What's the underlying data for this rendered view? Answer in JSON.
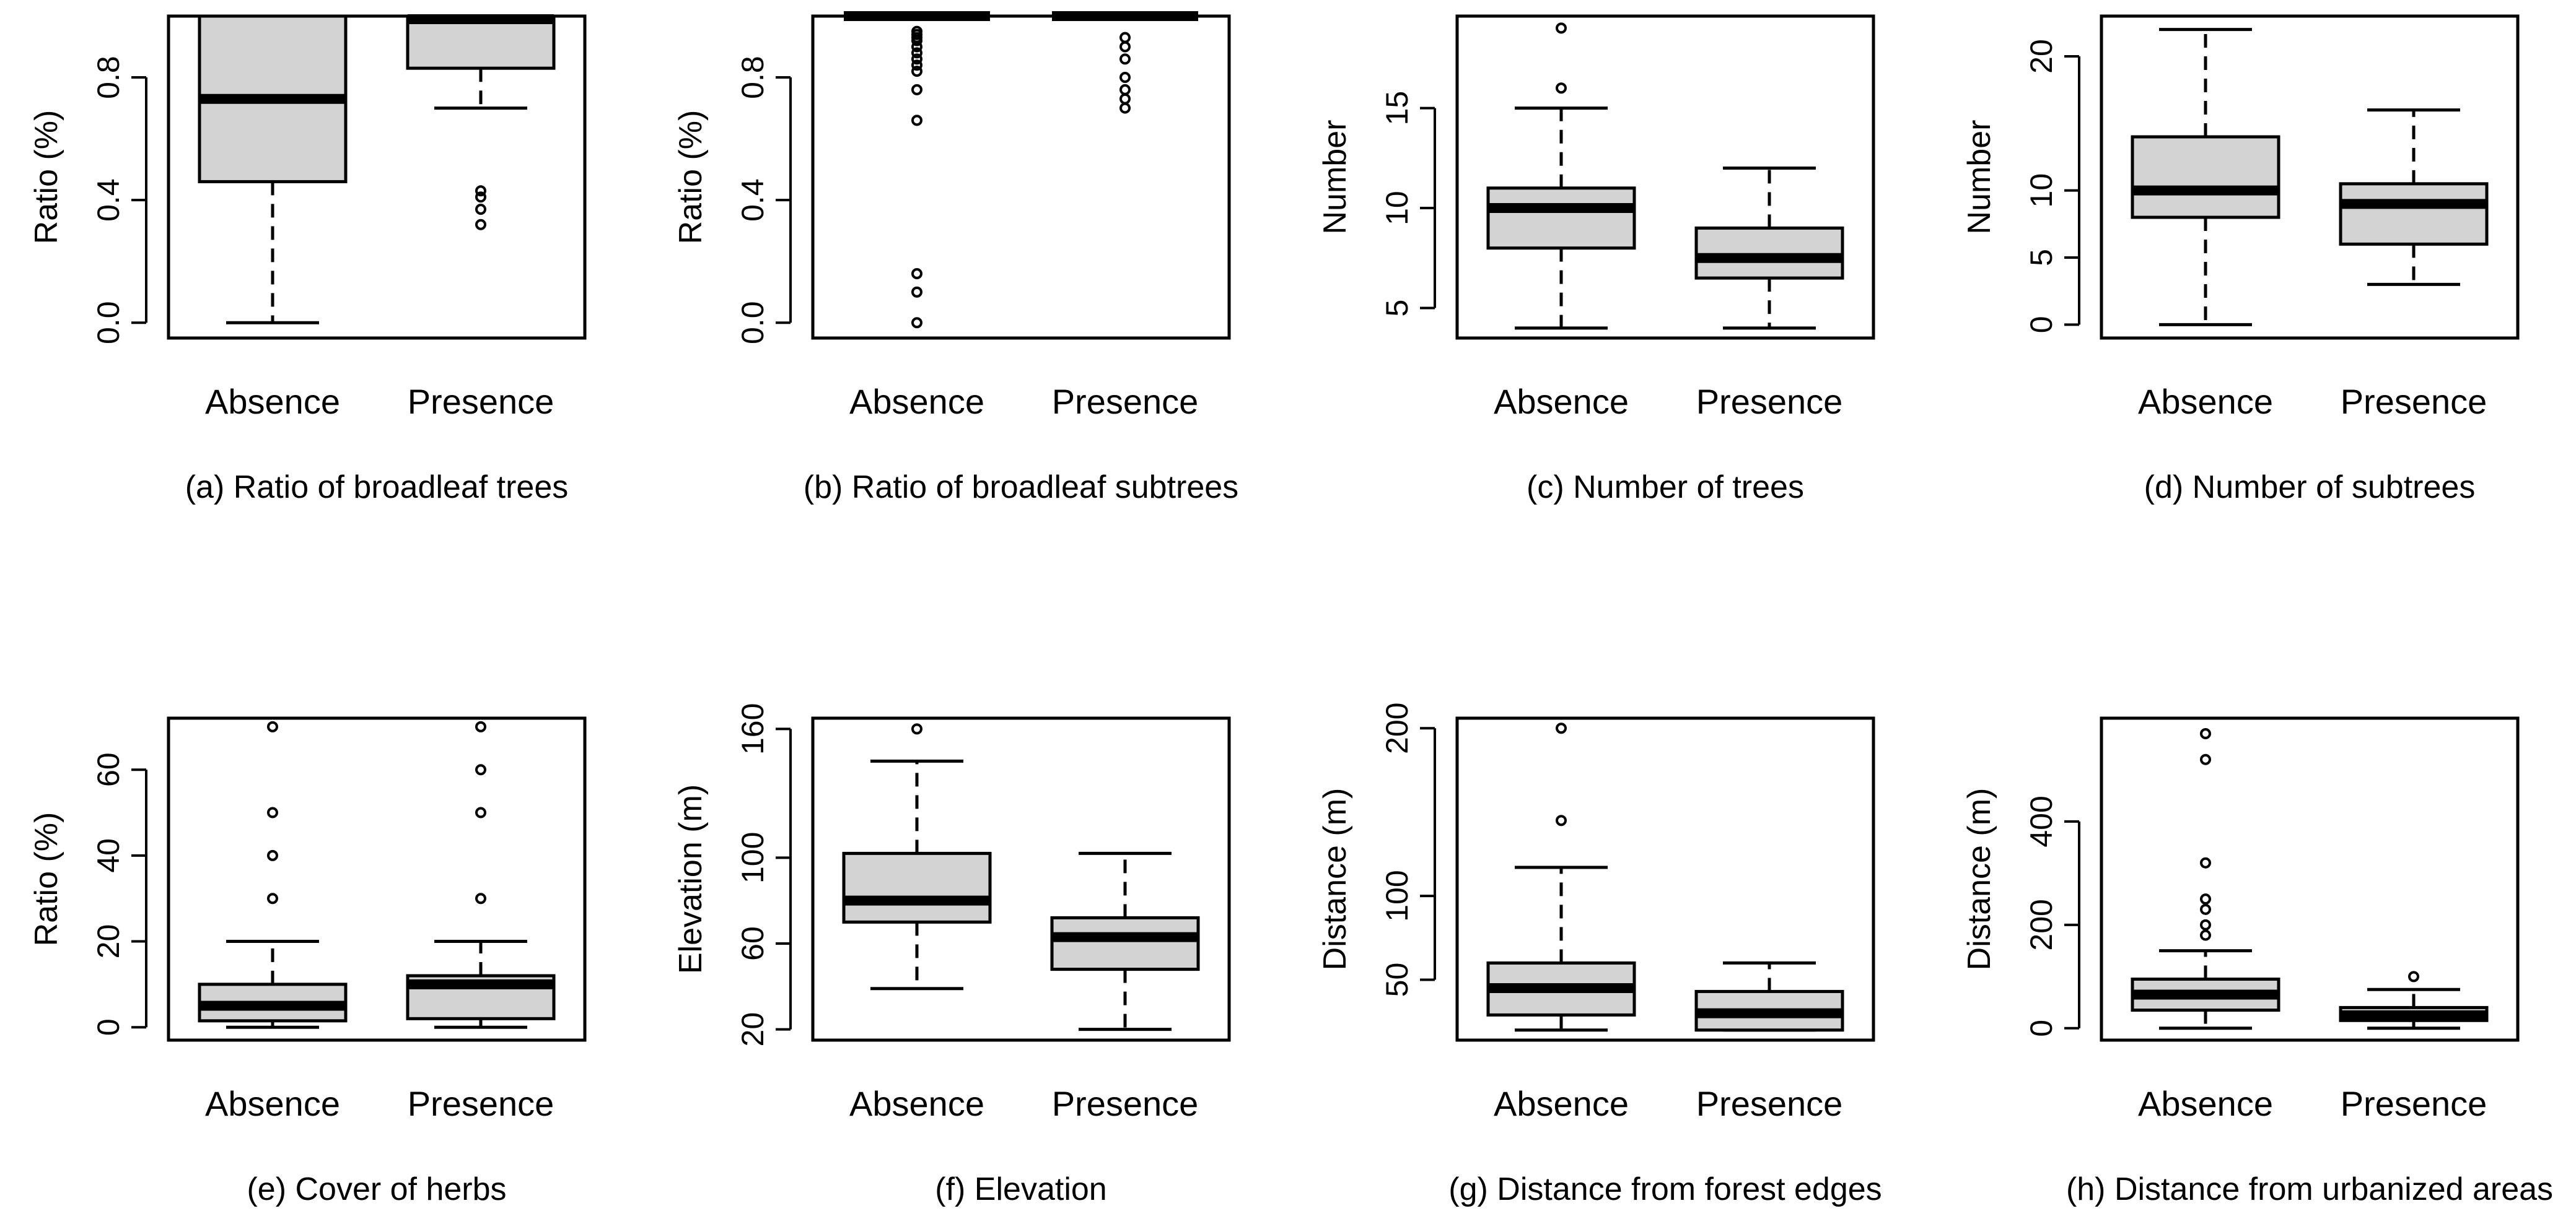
{
  "chart_data": [
    {
      "type": "boxplot",
      "caption": "(a) Ratio of broadleaf trees",
      "ylabel": "Ratio (%)",
      "categories": [
        "Absence",
        "Presence"
      ],
      "ylim": [
        -0.05,
        1.0
      ],
      "yticks": [
        0.0,
        0.4,
        0.8
      ],
      "ytick_labels": [
        "0.0",
        "0.4",
        "0.8"
      ],
      "boxes": [
        {
          "group": "Absence",
          "whisker_low": 0.0,
          "q1": 0.46,
          "median": 0.73,
          "q3": 1.0,
          "whisker_high": 1.0,
          "outliers": []
        },
        {
          "group": "Presence",
          "whisker_low": 0.7,
          "q1": 0.83,
          "median": 0.99,
          "q3": 1.0,
          "whisker_high": 1.0,
          "outliers": [
            0.32,
            0.37,
            0.41,
            0.43
          ]
        }
      ]
    },
    {
      "type": "boxplot",
      "caption": "(b) Ratio of broadleaf subtrees",
      "ylabel": "Ratio (%)",
      "categories": [
        "Absence",
        "Presence"
      ],
      "ylim": [
        -0.05,
        1.0
      ],
      "yticks": [
        0.0,
        0.4,
        0.8
      ],
      "ytick_labels": [
        "0.0",
        "0.4",
        "0.8"
      ],
      "boxes": [
        {
          "group": "Absence",
          "whisker_low": 1.0,
          "q1": 1.0,
          "median": 1.0,
          "q3": 1.0,
          "whisker_high": 1.0,
          "outliers": [
            0.0,
            0.1,
            0.16,
            0.66,
            0.76,
            0.82,
            0.84,
            0.86,
            0.88,
            0.9,
            0.92,
            0.93,
            0.94,
            0.95
          ]
        },
        {
          "group": "Presence",
          "whisker_low": 1.0,
          "q1": 1.0,
          "median": 1.0,
          "q3": 1.0,
          "whisker_high": 1.0,
          "outliers": [
            0.7,
            0.73,
            0.76,
            0.8,
            0.86,
            0.9,
            0.93
          ]
        }
      ]
    },
    {
      "type": "boxplot",
      "caption": "(c) Number of trees",
      "ylabel": "Number",
      "categories": [
        "Absence",
        "Presence"
      ],
      "ylim": [
        3.5,
        19.6
      ],
      "yticks": [
        5,
        10,
        15
      ],
      "ytick_labels": [
        "5",
        "10",
        "15"
      ],
      "boxes": [
        {
          "group": "Absence",
          "whisker_low": 4,
          "q1": 8,
          "median": 10,
          "q3": 11,
          "whisker_high": 15,
          "outliers": [
            16,
            19
          ]
        },
        {
          "group": "Presence",
          "whisker_low": 4,
          "q1": 6.5,
          "median": 7.5,
          "q3": 9,
          "whisker_high": 12,
          "outliers": []
        }
      ]
    },
    {
      "type": "boxplot",
      "caption": "(d) Number of subtrees",
      "ylabel": "Number",
      "categories": [
        "Absence",
        "Presence"
      ],
      "ylim": [
        -1,
        23
      ],
      "yticks": [
        0,
        5,
        10,
        20
      ],
      "ytick_labels": [
        "0",
        "5",
        "10",
        "20"
      ],
      "boxes": [
        {
          "group": "Absence",
          "whisker_low": 0,
          "q1": 8,
          "median": 10,
          "q3": 14,
          "whisker_high": 22,
          "outliers": []
        },
        {
          "group": "Presence",
          "whisker_low": 3,
          "q1": 6,
          "median": 9,
          "q3": 10.5,
          "whisker_high": 16,
          "outliers": []
        }
      ]
    },
    {
      "type": "boxplot",
      "caption": "(e) Cover of herbs",
      "ylabel": "Ratio (%)",
      "categories": [
        "Absence",
        "Presence"
      ],
      "ylim": [
        -3,
        72
      ],
      "yticks": [
        0,
        20,
        40,
        60
      ],
      "ytick_labels": [
        "0",
        "20",
        "40",
        "60"
      ],
      "boxes": [
        {
          "group": "Absence",
          "whisker_low": 0,
          "q1": 1.5,
          "median": 5,
          "q3": 10,
          "whisker_high": 20,
          "outliers": [
            30,
            40,
            50,
            70
          ]
        },
        {
          "group": "Presence",
          "whisker_low": 0,
          "q1": 2,
          "median": 10,
          "q3": 12,
          "whisker_high": 20,
          "outliers": [
            30,
            50,
            60,
            70
          ]
        }
      ]
    },
    {
      "type": "boxplot",
      "caption": "(f) Elevation",
      "ylabel": "Elevation (m)",
      "categories": [
        "Absence",
        "Presence"
      ],
      "ylim": [
        15,
        165
      ],
      "yticks": [
        20,
        60,
        100,
        160
      ],
      "ytick_labels": [
        "20",
        "60",
        "100",
        "160"
      ],
      "boxes": [
        {
          "group": "Absence",
          "whisker_low": 39,
          "q1": 70,
          "median": 80,
          "q3": 102,
          "whisker_high": 145,
          "outliers": [
            160
          ]
        },
        {
          "group": "Presence",
          "whisker_low": 20,
          "q1": 48,
          "median": 63,
          "q3": 72,
          "whisker_high": 102,
          "outliers": []
        }
      ]
    },
    {
      "type": "boxplot",
      "caption": "(g) Distance from forest edges",
      "ylabel": "Distance (m)",
      "categories": [
        "Absence",
        "Presence"
      ],
      "ylim": [
        14,
        206
      ],
      "yticks": [
        50,
        100,
        200
      ],
      "ytick_labels": [
        "50",
        "100",
        "200"
      ],
      "boxes": [
        {
          "group": "Absence",
          "whisker_low": 20,
          "q1": 29,
          "median": 45,
          "q3": 60,
          "whisker_high": 117,
          "outliers": [
            145,
            200
          ]
        },
        {
          "group": "Presence",
          "whisker_low": 20,
          "q1": 20,
          "median": 30,
          "q3": 43,
          "whisker_high": 60,
          "outliers": []
        }
      ]
    },
    {
      "type": "boxplot",
      "caption": "(h) Distance from urbanized areas",
      "ylabel": "Distance (m)",
      "categories": [
        "Absence",
        "Presence"
      ],
      "ylim": [
        -23,
        600
      ],
      "yticks": [
        0,
        200,
        400
      ],
      "ytick_labels": [
        "0",
        "200",
        "400"
      ],
      "boxes": [
        {
          "group": "Absence",
          "whisker_low": 0,
          "q1": 35,
          "median": 65,
          "q3": 95,
          "whisker_high": 150,
          "outliers": [
            180,
            200,
            230,
            250,
            320,
            520,
            570
          ]
        },
        {
          "group": "Presence",
          "whisker_low": 0,
          "q1": 15,
          "median": 25,
          "q3": 40,
          "whisker_high": 75,
          "outliers": [
            100
          ]
        }
      ]
    }
  ]
}
